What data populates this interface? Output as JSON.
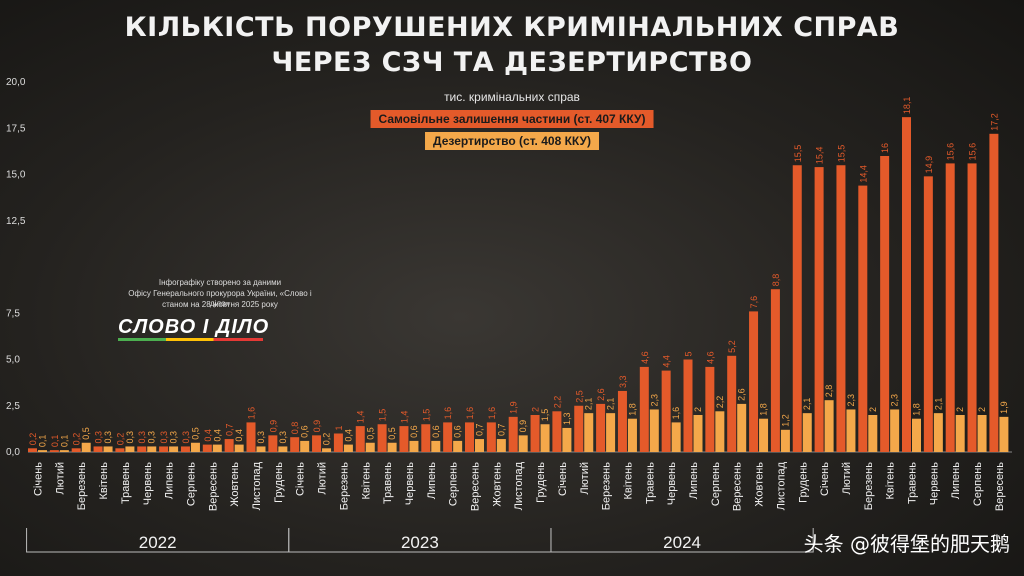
{
  "title_line1": "КІЛЬКІСТЬ ПОРУШЕНИХ КРИМІНАЛЬНИХ СПРАВ",
  "title_line2": "ЧЕРЕЗ СЗЧ ТА ДЕЗЕРТИРСТВО",
  "credit": {
    "line1": "Інфографіку створено за даними",
    "line2": "Офісу Генерального прокурора України, «Слово і діло»",
    "line3": "станом на 28 жовтня 2025 року"
  },
  "logo_text": "СЛОВО І ДІЛО",
  "watermark": "头条 @彼得堡的肥天鹅",
  "colors": {
    "szch": "#e45a2a",
    "desertion": "#f4a84a",
    "axis": "#cfcfcf"
  },
  "chart_data": {
    "type": "bar",
    "subtitle": "тис. кримінальних справ",
    "ylim": [
      0,
      20
    ],
    "yticks": [
      "0,0",
      "2,5",
      "5,0",
      "7,5",
      "12,5",
      "15,0",
      "17,5",
      "20,0"
    ],
    "ytick_values": [
      0,
      2.5,
      5,
      7.5,
      12.5,
      15,
      17.5,
      20
    ],
    "categories": [
      "Січень",
      "Лютий",
      "Березень",
      "Квітень",
      "Травень",
      "Червень",
      "Липень",
      "Серпень",
      "Вересень",
      "Жовтень",
      "Листопад",
      "Грудень",
      "Січень",
      "Лютий",
      "Березень",
      "Квітень",
      "Травень",
      "Червень",
      "Липень",
      "Серпень",
      "Вересень",
      "Жовтень",
      "Листопад",
      "Грудень",
      "Січень",
      "Лютий",
      "Березень",
      "Квітень",
      "Травень",
      "Червень",
      "Липень",
      "Серпень",
      "Вересень",
      "Жовтень",
      "Листопад",
      "Грудень",
      "Січень",
      "Лютий",
      "Березень",
      "Квітень",
      "Травень",
      "Червень",
      "Липень",
      "Серпень",
      "Вересень"
    ],
    "years": [
      {
        "label": "2022",
        "count": 12
      },
      {
        "label": "2023",
        "count": 12
      },
      {
        "label": "2024",
        "count": 12
      },
      {
        "label": "",
        "count": 9
      }
    ],
    "series": [
      {
        "name": "Самовільне залишення частини (ст. 407 ККУ)",
        "values": [
          0.2,
          0.1,
          0.2,
          0.3,
          0.2,
          0.3,
          0.3,
          0.3,
          0.4,
          0.7,
          1.6,
          0.9,
          0.8,
          0.9,
          1,
          1.4,
          1.5,
          1.4,
          1.5,
          1.6,
          1.6,
          1.6,
          1.9,
          2,
          2.2,
          2.5,
          2.6,
          3.3,
          4.6,
          4.4,
          5,
          4.6,
          5.2,
          7.6,
          8.8,
          15.5,
          15.4,
          15.5,
          14.4,
          16,
          18.1,
          14.9,
          15.6,
          15.6,
          17.2
        ],
        "labels": [
          "0,2",
          "0,1",
          "0,2",
          "0,3",
          "0,2",
          "0,3",
          "0,3",
          "0,3",
          "0,4",
          "0,7",
          "1,6",
          "0,9",
          "0,8",
          "0,9",
          "1",
          "1,4",
          "1,5",
          "1,4",
          "1,5",
          "1,6",
          "1,6",
          "1,6",
          "1,9",
          "2",
          "2,2",
          "2,5",
          "2,6",
          "3,3",
          "4,6",
          "4,4",
          "5",
          "4,6",
          "5,2",
          "7,6",
          "8,8",
          "15,5",
          "15,4",
          "15,5",
          "14,4",
          "16",
          "18,1",
          "14,9",
          "15,6",
          "15,6",
          "17,2"
        ]
      },
      {
        "name": "Дезертирство (ст. 408 ККУ)",
        "values": [
          0.1,
          0.1,
          0.5,
          0.3,
          0.3,
          0.3,
          0.3,
          0.5,
          0.4,
          0.4,
          0.3,
          0.3,
          0.6,
          0.2,
          0.4,
          0.5,
          0.5,
          0.6,
          0.6,
          0.6,
          0.7,
          0.7,
          0.9,
          1.5,
          1.3,
          2.1,
          2.1,
          1.8,
          2.3,
          1.6,
          2,
          2.2,
          2.6,
          1.8,
          1.2,
          2.1,
          2.8,
          2.3,
          2,
          2.3,
          1.8,
          2.1,
          2,
          2,
          1.9
        ],
        "labels": [
          "0,1",
          "0,1",
          "0,5",
          "0,3",
          "0,3",
          "0,3",
          "0,3",
          "0,5",
          "0,4",
          "0,4",
          "0,3",
          "0,3",
          "0,6",
          "0,2",
          "0,4",
          "0,5",
          "0,5",
          "0,6",
          "0,6",
          "0,6",
          "0,7",
          "0,7",
          "0,9",
          "1,5",
          "1,3",
          "2,1",
          "2,1",
          "1,8",
          "2,3",
          "1,6",
          "2",
          "2,2",
          "2,6",
          "1,8",
          "1,2",
          "2,1",
          "2,8",
          "2,3",
          "2",
          "2,3",
          "1,8",
          "2,1",
          "2",
          "2",
          "1,9"
        ]
      }
    ]
  }
}
